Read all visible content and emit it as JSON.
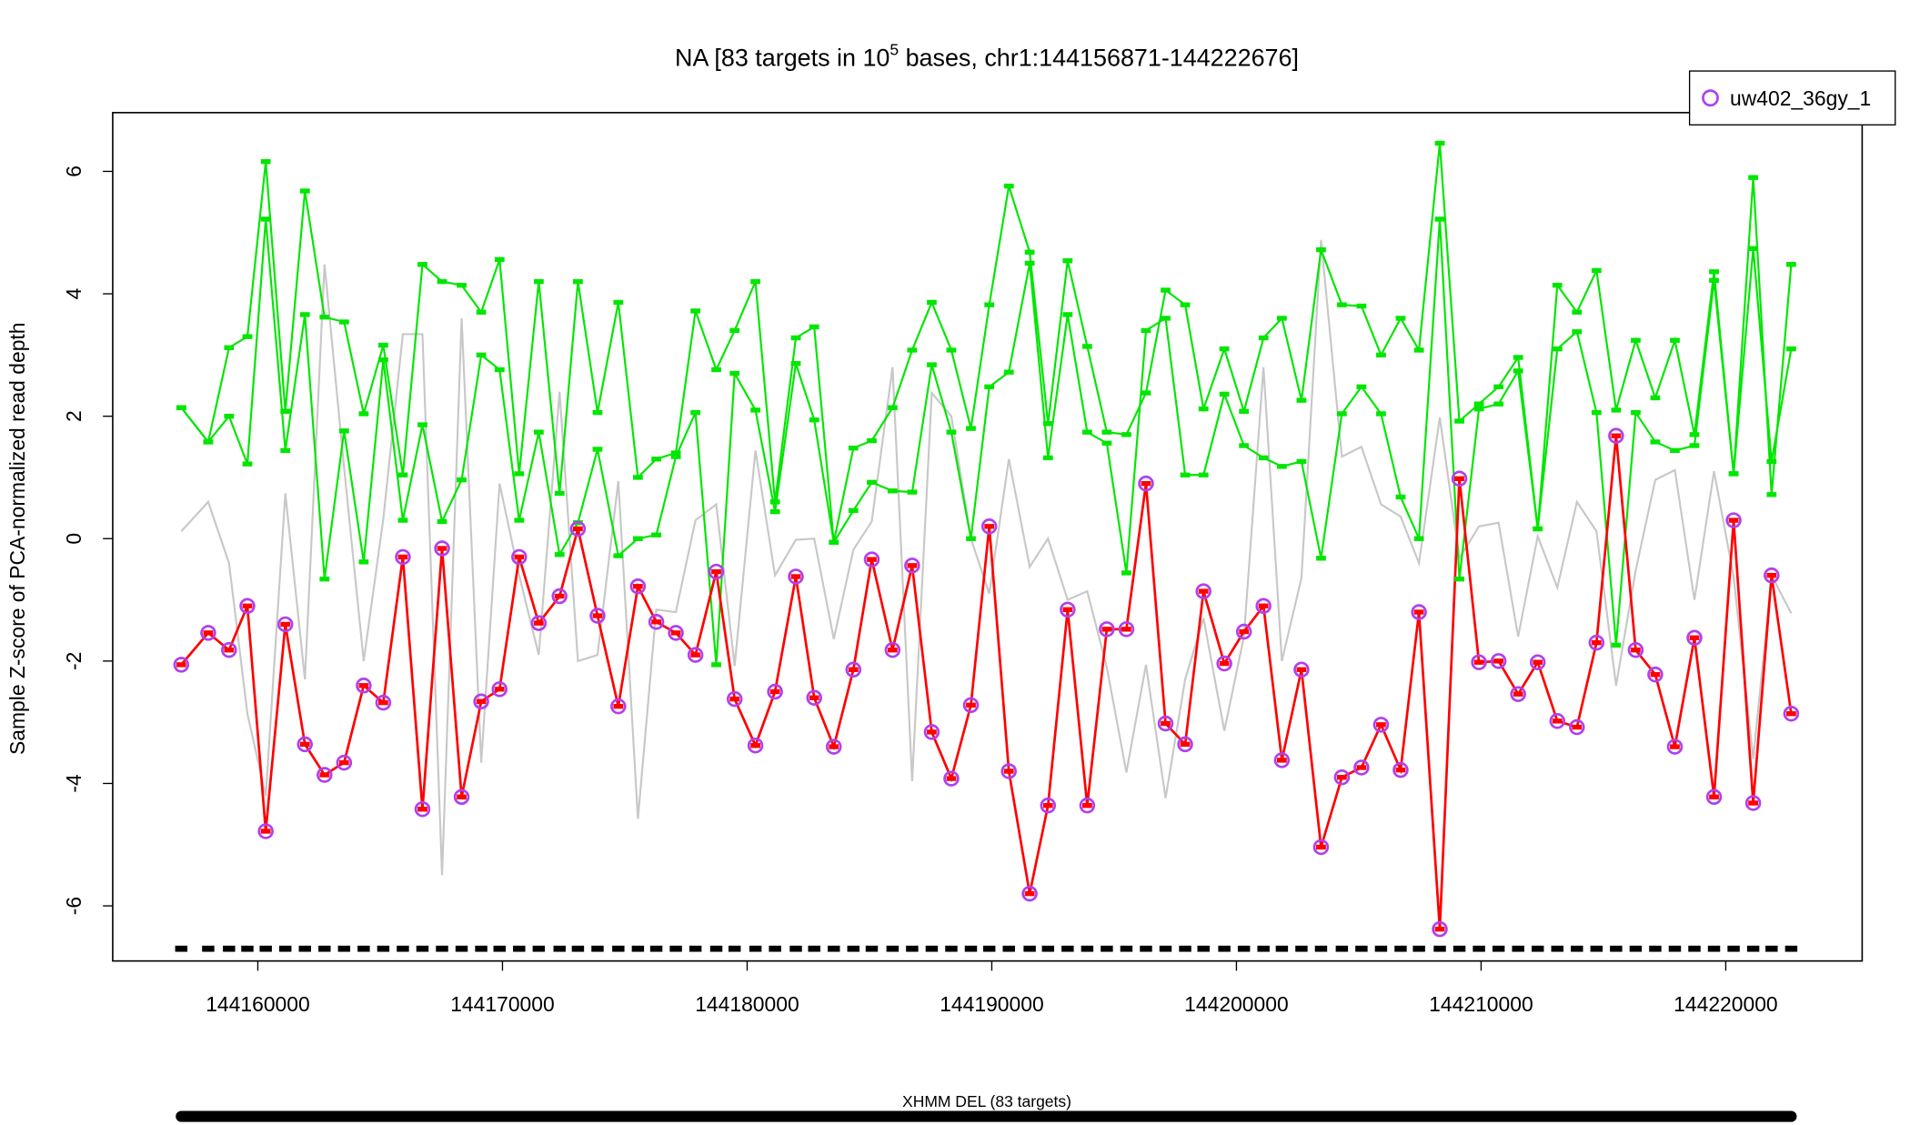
{
  "chart_data": {
    "type": "line",
    "title": {
      "main": "NA [83 targets in 10",
      "sup": "5",
      "rest": " bases, chr1:144156871-144222676]"
    },
    "ylabel": "Sample Z-score of PCA-normalized read depth",
    "track_label": "XHMM DEL (83 targets)",
    "legend": "top-right",
    "xlim": [
      144154069,
      144225576
    ],
    "ylim": [
      -6.9,
      6.96
    ],
    "xticks": [
      144160000,
      144170000,
      144180000,
      144190000,
      144200000,
      144210000,
      144220000
    ],
    "yticks": [
      -6,
      -4,
      -2,
      0,
      2,
      4,
      6
    ],
    "x": [
      144156871,
      144157972,
      144158823,
      144159573,
      144160324,
      144161124,
      144161925,
      144162726,
      144163526,
      144164327,
      144165128,
      144165928,
      144166729,
      144167530,
      144168330,
      144169131,
      144169881,
      144170682,
      144171483,
      144172333,
      144173084,
      144173885,
      144174735,
      144175536,
      144176287,
      144177087,
      144177888,
      144178738,
      144179489,
      144180340,
      144181140,
      144181991,
      144182742,
      144183542,
      144184343,
      144185094,
      144185944,
      144186745,
      144187546,
      144188346,
      144189147,
      144189897,
      144190698,
      144191549,
      144192299,
      144193100,
      144193901,
      144194701,
      144195502,
      144196303,
      144197103,
      144197904,
      144198654,
      144199505,
      144200306,
      144201106,
      144201857,
      144202658,
      144203458,
      144204309,
      144205110,
      144205910,
      144206711,
      144207461,
      144208312,
      144209113,
      144209913,
      144210714,
      144211515,
      144212315,
      144213116,
      144213917,
      144214717,
      144215518,
      144216319,
      144217119,
      144217920,
      144218720,
      144219521,
      144220322,
      144221122,
      144221873,
      144222676
    ],
    "series": [
      {
        "color": "#c8c8c8",
        "values": [
          0.12,
          0.6,
          -0.4,
          -2.86,
          -4.2,
          0.74,
          -2.3,
          4.48,
          1.16,
          -2.0,
          0.32,
          3.34,
          3.34,
          -5.5,
          3.6,
          -3.66,
          0.9,
          -0.6,
          -1.9,
          2.4,
          -2.0,
          -1.9,
          0.94,
          -4.58,
          -1.16,
          -1.2,
          0.3,
          0.56,
          -2.08,
          1.44,
          -0.6,
          -0.02,
          0.0,
          -1.64,
          -0.18,
          0.28,
          2.8,
          -3.96,
          2.38,
          2.0,
          0.0,
          -0.9,
          1.3,
          -0.46,
          0.0,
          -1.0,
          -0.86,
          -2.1,
          -3.82,
          -2.06,
          -4.24,
          -2.3,
          -1.3,
          -3.14,
          -1.6,
          2.8,
          -2.0,
          -0.64,
          4.88,
          1.34,
          1.5,
          0.56,
          0.36,
          -0.4,
          1.98,
          -0.32,
          0.2,
          0.26,
          -1.6,
          0.04,
          -0.8,
          0.6,
          0.12,
          -2.4,
          -0.52,
          0.96,
          1.12,
          -1.0,
          1.1,
          -0.62,
          -3.6,
          -0.6,
          -1.22
        ]
      },
      {
        "color": "#00e600",
        "values": [
          2.14,
          1.58,
          3.12,
          3.3,
          6.16,
          2.08,
          5.68,
          3.62,
          3.54,
          2.04,
          3.16,
          1.04,
          4.48,
          4.2,
          4.14,
          3.7,
          4.56,
          1.06,
          4.2,
          0.74,
          4.2,
          2.06,
          3.86,
          1.0,
          1.3,
          1.4,
          3.72,
          2.76,
          3.4,
          4.2,
          0.6,
          3.28,
          3.46,
          -0.06,
          1.48,
          1.6,
          2.14,
          3.08,
          3.86,
          3.08,
          1.8,
          3.82,
          5.76,
          4.68,
          1.88,
          4.54,
          3.14,
          1.74,
          1.7,
          2.38,
          4.06,
          3.82,
          2.12,
          3.1,
          2.08,
          3.28,
          3.6,
          2.26,
          4.72,
          3.82,
          3.8,
          3.0,
          3.6,
          3.08,
          6.46,
          1.92,
          2.2,
          2.48,
          2.96,
          0.16,
          4.14,
          3.7,
          4.38,
          2.1,
          3.24,
          2.3,
          3.24,
          1.7,
          4.36,
          1.06,
          5.9,
          0.72,
          4.48
        ]
      },
      {
        "color": "#00e600",
        "values": [
          2.14,
          1.58,
          2.0,
          1.22,
          5.22,
          1.44,
          3.66,
          -0.66,
          1.76,
          -0.38,
          2.92,
          0.3,
          1.86,
          0.28,
          0.96,
          3.0,
          2.76,
          0.3,
          1.74,
          -0.26,
          0.26,
          1.46,
          -0.28,
          0.0,
          0.06,
          1.34,
          2.06,
          -2.06,
          2.7,
          2.1,
          0.44,
          2.86,
          1.94,
          -0.06,
          0.46,
          0.92,
          0.78,
          0.76,
          2.84,
          1.74,
          0.0,
          2.48,
          2.72,
          4.5,
          1.32,
          3.66,
          1.74,
          1.56,
          -0.56,
          3.4,
          3.6,
          1.04,
          1.04,
          2.36,
          1.52,
          1.32,
          1.18,
          1.26,
          -0.32,
          2.04,
          2.48,
          2.04,
          0.68,
          0.0,
          5.22,
          -0.66,
          2.12,
          2.2,
          2.74,
          0.16,
          3.1,
          3.38,
          2.06,
          -1.74,
          2.06,
          1.58,
          1.44,
          1.52,
          4.22,
          1.06,
          4.74,
          1.26,
          3.1
        ]
      },
      {
        "name": "uw402_36gy_1",
        "color": "#ff0000",
        "marker_color": "#b040f0",
        "values": [
          -2.06,
          -1.54,
          -1.82,
          -1.1,
          -4.78,
          -1.4,
          -3.36,
          -3.86,
          -3.66,
          -2.4,
          -2.68,
          -0.3,
          -4.42,
          -0.16,
          -4.22,
          -2.66,
          -2.46,
          -0.3,
          -1.38,
          -0.94,
          0.16,
          -1.26,
          -2.74,
          -0.78,
          -1.36,
          -1.54,
          -1.9,
          -0.54,
          -2.62,
          -3.38,
          -2.5,
          -0.62,
          -2.6,
          -3.4,
          -2.14,
          -0.34,
          -1.82,
          -0.44,
          -3.16,
          -3.92,
          -2.72,
          0.2,
          -3.8,
          -5.8,
          -4.36,
          -1.16,
          -4.36,
          -1.48,
          -1.48,
          0.9,
          -3.02,
          -3.36,
          -0.86,
          -2.04,
          -1.52,
          -1.1,
          -3.62,
          -2.14,
          -5.04,
          -3.9,
          -3.74,
          -3.04,
          -3.78,
          -1.2,
          -6.38,
          0.98,
          -2.02,
          -2.0,
          -2.54,
          -2.02,
          -2.98,
          -3.08,
          -1.7,
          1.68,
          -1.82,
          -2.22,
          -3.4,
          -1.62,
          -4.22,
          0.3,
          -4.32,
          -0.6,
          -2.86
        ]
      }
    ]
  }
}
